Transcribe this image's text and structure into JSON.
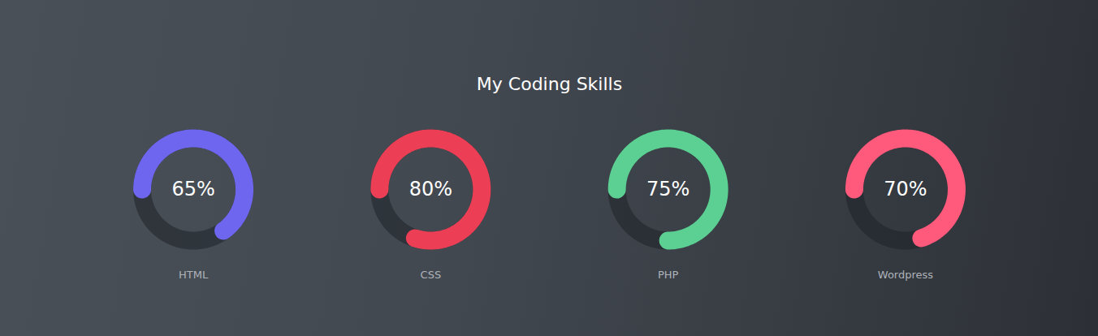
{
  "chart_data": {
    "type": "gauge",
    "title": "My Coding Skills",
    "categories": [
      "HTML",
      "CSS",
      "PHP",
      "Wordpress"
    ],
    "values": [
      65,
      80,
      75,
      70
    ],
    "value_labels": [
      "65%",
      "80%",
      "75%",
      "70%"
    ],
    "colors": [
      "#6f66f0",
      "#ec3f56",
      "#5ccf92",
      "#ff5a7c"
    ],
    "ylim": [
      0,
      100
    ],
    "data_labels": true,
    "tick_labels": false
  }
}
